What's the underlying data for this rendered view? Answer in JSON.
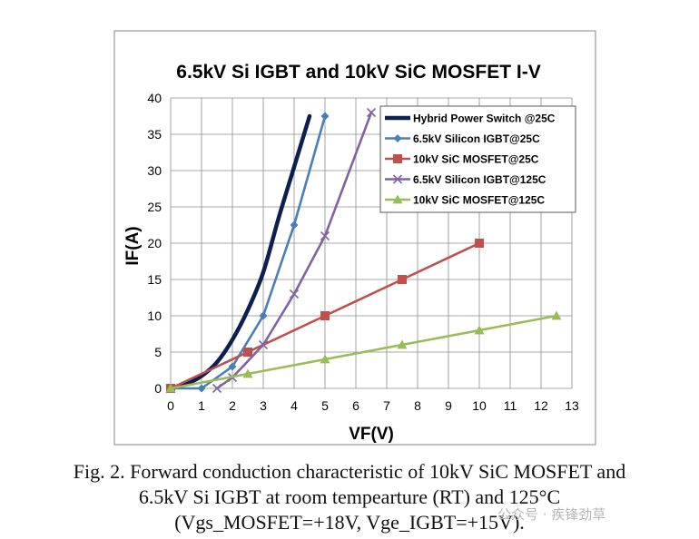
{
  "chart_data": {
    "type": "line",
    "title": "6.5kV Si IGBT and 10kV SiC MOSFET I-V",
    "xlabel": "VF(V)",
    "ylabel": "IF(A)",
    "xlim": [
      0,
      13
    ],
    "ylim": [
      0,
      40
    ],
    "xticks": [
      "0",
      "1",
      "2",
      "3",
      "4",
      "5",
      "6",
      "7",
      "8",
      "9",
      "10",
      "11",
      "12",
      "13"
    ],
    "yticks": [
      "0",
      "5",
      "10",
      "15",
      "20",
      "25",
      "30",
      "35",
      "40"
    ],
    "grid": true,
    "legend_position": "top-right",
    "series": [
      {
        "name": "Hybrid Power Switch @25C",
        "color": "#0d1f4e",
        "marker": "none",
        "x": [
          0,
          0.5,
          1,
          1.5,
          2,
          2.5,
          3,
          3.5,
          4,
          4.5
        ],
        "y": [
          0,
          0.6,
          1.7,
          3.6,
          6.7,
          10.8,
          16,
          23.5,
          30.5,
          37.5
        ]
      },
      {
        "name": "6.5kV Silicon IGBT@25C",
        "color": "#4a7ebb",
        "marker": "diamond",
        "x": [
          0,
          1,
          2,
          3,
          4,
          5
        ],
        "y": [
          0,
          0,
          3,
          10,
          22.5,
          37.5
        ]
      },
      {
        "name": "10kV SiC MOSFET@25C",
        "color": "#c0504d",
        "marker": "square",
        "x": [
          0,
          2.5,
          5,
          7.5,
          10
        ],
        "y": [
          0,
          5,
          10,
          15,
          20
        ]
      },
      {
        "name": "6.5kV Silicon IGBT@125C",
        "color": "#8064a2",
        "marker": "x",
        "x": [
          1.5,
          2,
          3,
          4,
          5,
          6.5
        ],
        "y": [
          0,
          1.5,
          6,
          13,
          21,
          38
        ]
      },
      {
        "name": "10kV SiC MOSFET@125C",
        "color": "#9bbb59",
        "marker": "triangle",
        "x": [
          0,
          2.5,
          5,
          7.5,
          10,
          12.5
        ],
        "y": [
          0,
          2,
          4,
          6,
          8,
          10
        ]
      }
    ]
  },
  "caption": {
    "line1": "Fig. 2.   Forward conduction characteristic of 10kV SiC MOSFET and",
    "line2": "6.5kV Si IGBT at room tempearture (RT) and 125°C",
    "line3": "(Vgs_MOSFET=+18V, Vge_IGBT=+15V)."
  },
  "watermark": "公众号 · 疾锋劲草"
}
